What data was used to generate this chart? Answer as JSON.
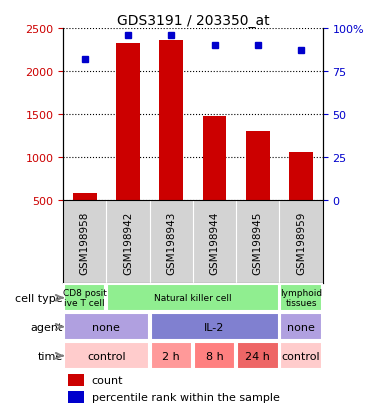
{
  "title": "GDS3191 / 203350_at",
  "samples": [
    "GSM198958",
    "GSM198942",
    "GSM198943",
    "GSM198944",
    "GSM198945",
    "GSM198959"
  ],
  "counts": [
    590,
    2330,
    2360,
    1480,
    1310,
    1060
  ],
  "percentile_ranks": [
    82,
    96,
    96,
    90,
    90,
    87
  ],
  "percentile_scale": 40,
  "bar_color": "#cc0000",
  "dot_color": "#0000cc",
  "ylim_left": [
    500,
    2500
  ],
  "ylim_right": [
    0,
    100
  ],
  "yticks_left": [
    500,
    1000,
    1500,
    2000,
    2500
  ],
  "yticks_right": [
    0,
    25,
    50,
    75,
    100
  ],
  "cell_type_data": [
    {
      "label": "CD8 posit\nive T cell",
      "start": 0,
      "end": 1,
      "color": "#90ee90"
    },
    {
      "label": "Natural killer cell",
      "start": 1,
      "end": 5,
      "color": "#90ee90"
    },
    {
      "label": "lymphoid\ntissues",
      "start": 5,
      "end": 6,
      "color": "#90ee90"
    }
  ],
  "agent_data": [
    {
      "label": "none",
      "start": 0,
      "end": 2,
      "color": "#b0a0e0"
    },
    {
      "label": "IL-2",
      "start": 2,
      "end": 5,
      "color": "#8080d0"
    },
    {
      "label": "none",
      "start": 5,
      "end": 6,
      "color": "#b0a0e0"
    }
  ],
  "time_data": [
    {
      "label": "control",
      "start": 0,
      "end": 2,
      "color": "#ffcccc"
    },
    {
      "label": "2 h",
      "start": 2,
      "end": 3,
      "color": "#ff9999"
    },
    {
      "label": "8 h",
      "start": 3,
      "end": 4,
      "color": "#ff8080"
    },
    {
      "label": "24 h",
      "start": 4,
      "end": 5,
      "color": "#ee6666"
    },
    {
      "label": "control",
      "start": 5,
      "end": 6,
      "color": "#ffcccc"
    }
  ],
  "row_labels": [
    "cell type",
    "agent",
    "time"
  ],
  "bg_color": "#d3d3d3",
  "grid_color": "#888888"
}
